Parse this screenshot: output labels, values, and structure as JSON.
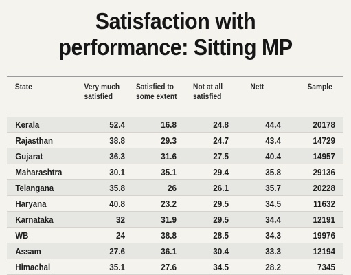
{
  "title": {
    "line1": "Satisfaction with",
    "line2": "performance: Sitting MP"
  },
  "table": {
    "headers": {
      "state": "State",
      "very_much": "Very much\nsatisfied",
      "some_extent": "Satisfied to\nsome extent",
      "not_at_all": "Not at all\nsatisfied",
      "nett": "Nett",
      "sample": "Sample"
    },
    "rows": [
      {
        "state": "Kerala",
        "very_much": "52.4",
        "some_extent": "16.8",
        "not_at_all": "24.8",
        "nett": "44.4",
        "sample": "20178"
      },
      {
        "state": "Rajasthan",
        "very_much": "38.8",
        "some_extent": "29.3",
        "not_at_all": "24.7",
        "nett": "43.4",
        "sample": "14729"
      },
      {
        "state": "Gujarat",
        "very_much": "36.3",
        "some_extent": "31.6",
        "not_at_all": "27.5",
        "nett": "40.4",
        "sample": "14957"
      },
      {
        "state": "Maharashtra",
        "very_much": "30.1",
        "some_extent": "35.1",
        "not_at_all": "29.4",
        "nett": "35.8",
        "sample": "29136"
      },
      {
        "state": "Telangana",
        "very_much": "35.8",
        "some_extent": "26",
        "not_at_all": "26.1",
        "nett": "35.7",
        "sample": "20228"
      },
      {
        "state": "Haryana",
        "very_much": "40.8",
        "some_extent": "23.2",
        "not_at_all": "29.5",
        "nett": "34.5",
        "sample": "11632"
      },
      {
        "state": "Karnataka",
        "very_much": "32",
        "some_extent": "31.9",
        "not_at_all": "29.5",
        "nett": "34.4",
        "sample": "12191"
      },
      {
        "state": "WB",
        "very_much": "24",
        "some_extent": "38.8",
        "not_at_all": "28.5",
        "nett": "34.3",
        "sample": "19976"
      },
      {
        "state": "Assam",
        "very_much": "27.6",
        "some_extent": "36.1",
        "not_at_all": "30.4",
        "nett": "33.3",
        "sample": "12194"
      },
      {
        "state": "Himachal",
        "very_much": "35.1",
        "some_extent": "27.6",
        "not_at_all": "34.5",
        "nett": "28.2",
        "sample": "7345"
      }
    ]
  }
}
